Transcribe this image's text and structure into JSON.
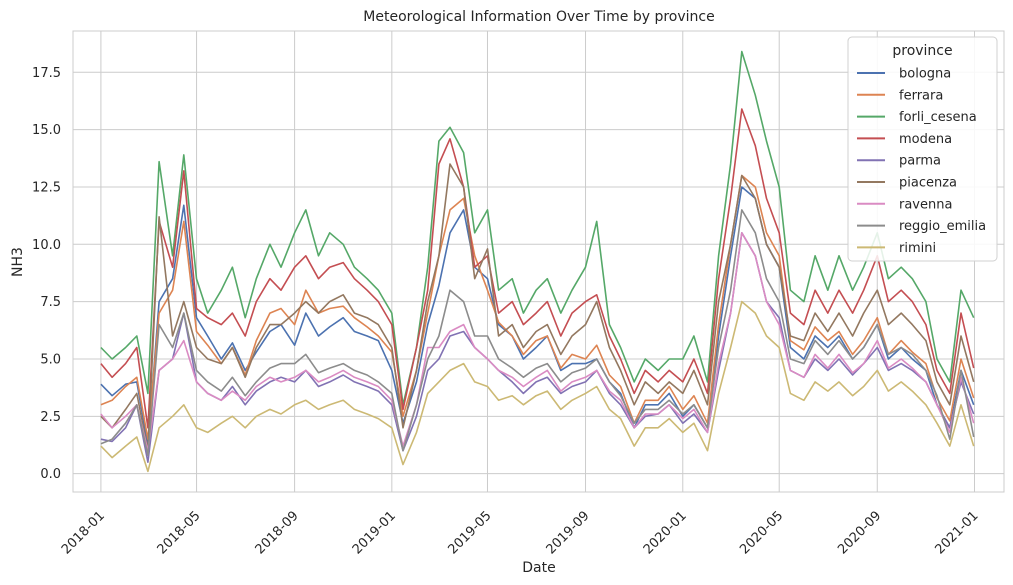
{
  "chart_data": {
    "type": "line",
    "title": "Meteorological Information Over Time by province",
    "xlabel": "Date",
    "ylabel": "NH3",
    "xlim": [
      "2017-11-27",
      "2021-02-07"
    ],
    "ylim": [
      -0.8,
      19.3
    ],
    "x_ticks": [
      "2018-01",
      "2018-05",
      "2018-09",
      "2019-01",
      "2019-05",
      "2019-09",
      "2020-01",
      "2020-05",
      "2020-09",
      "2021-01"
    ],
    "y_ticks": [
      0.0,
      2.5,
      5.0,
      7.5,
      10.0,
      12.5,
      15.0,
      17.5
    ],
    "y_tick_labels": [
      "0.0",
      "2.5",
      "5.0",
      "7.5",
      "10.0",
      "12.5",
      "15.0",
      "17.5"
    ],
    "grid": true,
    "legend": {
      "title": "province",
      "placement": "top-right"
    },
    "x": [
      "2018-01-01",
      "2018-01-15",
      "2018-02-01",
      "2018-02-15",
      "2018-03-01",
      "2018-03-15",
      "2018-04-01",
      "2018-04-15",
      "2018-05-01",
      "2018-05-15",
      "2018-06-01",
      "2018-06-15",
      "2018-07-01",
      "2018-07-15",
      "2018-08-01",
      "2018-08-15",
      "2018-09-01",
      "2018-09-15",
      "2018-10-01",
      "2018-10-15",
      "2018-11-01",
      "2018-11-15",
      "2018-12-01",
      "2018-12-15",
      "2019-01-01",
      "2019-01-15",
      "2019-02-01",
      "2019-02-15",
      "2019-03-01",
      "2019-03-15",
      "2019-04-01",
      "2019-04-15",
      "2019-05-01",
      "2019-05-15",
      "2019-06-01",
      "2019-06-15",
      "2019-07-01",
      "2019-07-15",
      "2019-08-01",
      "2019-08-15",
      "2019-09-01",
      "2019-09-15",
      "2019-10-01",
      "2019-10-15",
      "2019-11-01",
      "2019-11-15",
      "2019-12-01",
      "2019-12-15",
      "2020-01-01",
      "2020-01-15",
      "2020-02-01",
      "2020-02-15",
      "2020-03-01",
      "2020-03-15",
      "2020-04-01",
      "2020-04-15",
      "2020-05-01",
      "2020-05-15",
      "2020-06-01",
      "2020-06-15",
      "2020-07-01",
      "2020-07-15",
      "2020-08-01",
      "2020-08-15",
      "2020-09-01",
      "2020-09-15",
      "2020-10-01",
      "2020-10-15",
      "2020-11-01",
      "2020-11-15",
      "2020-12-01",
      "2020-12-15",
      "2020-12-31"
    ],
    "series": [
      {
        "name": "bologna",
        "color": "#4c72b0",
        "values": [
          3.9,
          3.4,
          3.9,
          4.0,
          1.2,
          7.5,
          8.5,
          11.7,
          6.8,
          6.0,
          5.0,
          5.7,
          4.5,
          5.3,
          6.2,
          6.5,
          5.6,
          7.0,
          6.0,
          6.4,
          6.8,
          6.2,
          6.0,
          5.8,
          4.5,
          2.2,
          4.0,
          6.5,
          8.2,
          10.5,
          11.5,
          9.0,
          8.5,
          6.5,
          6.0,
          5.0,
          5.5,
          6.0,
          4.5,
          4.8,
          4.8,
          5.0,
          4.0,
          3.5,
          2.0,
          3.0,
          3.0,
          3.5,
          2.5,
          3.0,
          2.0,
          6.0,
          9.5,
          12.5,
          12.0,
          10.0,
          9.0,
          5.5,
          5.0,
          6.0,
          5.5,
          6.0,
          5.0,
          5.5,
          6.5,
          5.0,
          5.5,
          5.0,
          4.5,
          3.0,
          2.0,
          4.5,
          3.0
        ]
      },
      {
        "name": "ferrara",
        "color": "#dd8452",
        "values": [
          3.0,
          3.2,
          3.8,
          4.2,
          1.5,
          7.0,
          8.0,
          11.0,
          6.2,
          5.6,
          4.8,
          5.5,
          4.3,
          5.8,
          7.0,
          7.2,
          6.5,
          8.0,
          7.0,
          7.2,
          7.3,
          6.8,
          6.4,
          6.0,
          5.3,
          2.5,
          4.5,
          7.0,
          9.5,
          11.5,
          12.0,
          9.5,
          8.0,
          6.6,
          6.0,
          5.2,
          5.8,
          6.0,
          4.6,
          5.2,
          5.0,
          5.6,
          4.3,
          3.8,
          2.2,
          3.2,
          3.2,
          3.8,
          2.8,
          3.4,
          2.2,
          6.5,
          10.0,
          13.0,
          12.5,
          10.5,
          9.5,
          5.8,
          5.4,
          6.4,
          5.8,
          6.2,
          5.2,
          5.8,
          6.8,
          5.2,
          5.8,
          5.3,
          4.8,
          3.3,
          2.3,
          5.0,
          3.3
        ]
      },
      {
        "name": "forli_cesena",
        "color": "#55a868",
        "values": [
          5.5,
          5.0,
          5.5,
          6.0,
          3.5,
          13.6,
          9.5,
          13.9,
          8.5,
          7.0,
          8.0,
          9.0,
          6.8,
          8.5,
          10.0,
          9.0,
          10.5,
          11.5,
          9.5,
          10.5,
          10.0,
          9.0,
          8.5,
          8.0,
          7.0,
          3.0,
          5.5,
          9.0,
          14.5,
          15.1,
          14.0,
          10.5,
          11.5,
          8.0,
          8.5,
          7.0,
          8.0,
          8.5,
          7.0,
          8.0,
          9.0,
          11.0,
          6.5,
          5.5,
          4.0,
          5.0,
          4.5,
          5.0,
          5.0,
          6.0,
          4.0,
          9.5,
          13.5,
          18.4,
          16.5,
          14.5,
          12.5,
          8.0,
          7.5,
          9.5,
          8.0,
          9.5,
          8.0,
          9.0,
          10.5,
          8.5,
          9.0,
          8.5,
          7.5,
          5.0,
          4.0,
          8.0,
          6.8
        ]
      },
      {
        "name": "modena",
        "color": "#c44e52",
        "values": [
          4.8,
          4.2,
          4.8,
          5.5,
          2.0,
          11.0,
          9.0,
          13.2,
          7.2,
          6.8,
          6.5,
          7.0,
          6.0,
          7.5,
          8.5,
          8.0,
          9.0,
          9.5,
          8.5,
          9.0,
          9.2,
          8.5,
          8.0,
          7.5,
          6.5,
          2.8,
          5.5,
          8.0,
          13.5,
          14.6,
          12.5,
          9.0,
          9.5,
          7.0,
          7.5,
          6.5,
          7.0,
          7.5,
          6.0,
          7.0,
          7.5,
          7.8,
          6.0,
          5.0,
          3.5,
          4.5,
          4.0,
          4.5,
          4.0,
          5.0,
          3.5,
          8.5,
          12.0,
          15.9,
          14.3,
          12.0,
          10.5,
          7.0,
          6.5,
          8.0,
          7.0,
          8.0,
          7.0,
          8.0,
          9.5,
          7.5,
          8.0,
          7.5,
          6.5,
          4.5,
          3.5,
          7.0,
          4.6
        ]
      },
      {
        "name": "parma",
        "color": "#8172b3",
        "values": [
          1.5,
          1.4,
          2.0,
          3.0,
          0.5,
          4.5,
          5.0,
          7.0,
          4.0,
          3.5,
          3.2,
          3.8,
          3.0,
          3.6,
          4.0,
          4.2,
          4.0,
          4.5,
          3.8,
          4.0,
          4.3,
          4.0,
          3.8,
          3.6,
          3.0,
          1.0,
          2.5,
          4.5,
          5.0,
          6.0,
          6.2,
          5.5,
          5.0,
          4.5,
          4.0,
          3.5,
          4.0,
          4.2,
          3.5,
          3.8,
          4.0,
          4.5,
          3.5,
          3.0,
          2.0,
          2.5,
          2.6,
          3.0,
          2.2,
          2.6,
          1.8,
          4.5,
          7.0,
          10.5,
          9.5,
          7.5,
          6.8,
          4.5,
          4.2,
          5.0,
          4.5,
          5.0,
          4.3,
          4.8,
          5.5,
          4.5,
          4.8,
          4.5,
          4.0,
          3.0,
          2.0,
          4.0,
          2.6
        ]
      },
      {
        "name": "piacenza",
        "color": "#937860",
        "values": [
          2.5,
          2.0,
          2.8,
          3.5,
          1.0,
          11.2,
          6.0,
          7.5,
          5.5,
          5.0,
          4.8,
          5.5,
          4.2,
          5.5,
          6.5,
          6.5,
          7.0,
          7.5,
          7.0,
          7.5,
          7.8,
          7.0,
          6.8,
          6.5,
          5.5,
          2.0,
          4.5,
          7.5,
          9.5,
          13.5,
          12.5,
          8.5,
          9.8,
          6.0,
          6.5,
          5.5,
          6.2,
          6.5,
          5.2,
          6.0,
          6.5,
          7.5,
          5.5,
          4.5,
          3.0,
          4.0,
          3.5,
          4.0,
          3.5,
          4.5,
          3.0,
          7.5,
          10.0,
          13.0,
          12.0,
          10.0,
          9.0,
          6.0,
          5.8,
          7.0,
          6.2,
          7.0,
          6.0,
          7.0,
          8.0,
          6.5,
          7.0,
          6.5,
          5.8,
          4.0,
          3.0,
          6.0,
          4.0
        ]
      },
      {
        "name": "ravenna",
        "color": "#da8bc3",
        "values": [
          2.6,
          2.0,
          2.5,
          3.0,
          1.0,
          4.5,
          5.0,
          5.8,
          4.0,
          3.5,
          3.2,
          3.6,
          3.2,
          3.8,
          4.2,
          4.0,
          4.2,
          4.5,
          4.0,
          4.2,
          4.5,
          4.2,
          4.0,
          3.8,
          3.2,
          1.2,
          3.0,
          5.5,
          5.5,
          6.2,
          6.5,
          5.5,
          5.0,
          4.5,
          4.2,
          3.8,
          4.2,
          4.5,
          3.6,
          4.0,
          4.2,
          4.5,
          3.6,
          3.2,
          2.0,
          2.6,
          2.6,
          3.0,
          2.4,
          2.8,
          1.8,
          4.8,
          7.0,
          10.5,
          9.5,
          7.5,
          6.5,
          4.5,
          4.2,
          5.2,
          4.6,
          5.2,
          4.4,
          4.8,
          5.8,
          4.6,
          5.0,
          4.6,
          4.0,
          3.0,
          1.8,
          4.2,
          2.2
        ]
      },
      {
        "name": "reggio_emilia",
        "color": "#8c8c8c",
        "values": [
          1.3,
          1.5,
          2.2,
          3.0,
          0.8,
          6.5,
          5.5,
          7.0,
          4.5,
          4.0,
          3.6,
          4.2,
          3.4,
          4.0,
          4.6,
          4.8,
          4.8,
          5.2,
          4.4,
          4.6,
          4.8,
          4.5,
          4.3,
          4.0,
          3.5,
          1.0,
          3.0,
          5.0,
          6.0,
          8.0,
          7.5,
          6.0,
          6.0,
          5.0,
          4.6,
          4.2,
          4.6,
          4.8,
          4.0,
          4.4,
          4.6,
          5.0,
          4.0,
          3.4,
          2.2,
          2.8,
          2.8,
          3.2,
          2.6,
          3.0,
          2.0,
          5.5,
          8.0,
          11.5,
          10.5,
          8.5,
          7.5,
          5.0,
          4.8,
          5.8,
          5.2,
          5.8,
          5.0,
          5.5,
          6.5,
          5.2,
          5.5,
          5.2,
          4.5,
          3.4,
          1.5,
          4.5,
          1.6
        ]
      },
      {
        "name": "rimini",
        "color": "#ccb974",
        "values": [
          1.2,
          0.7,
          1.2,
          1.6,
          0.1,
          2.0,
          2.5,
          3.0,
          2.0,
          1.8,
          2.2,
          2.5,
          2.0,
          2.5,
          2.8,
          2.6,
          3.0,
          3.2,
          2.8,
          3.0,
          3.2,
          2.8,
          2.6,
          2.4,
          2.0,
          0.4,
          1.8,
          3.5,
          4.0,
          4.5,
          4.8,
          4.0,
          3.8,
          3.2,
          3.4,
          3.0,
          3.4,
          3.6,
          2.8,
          3.2,
          3.5,
          3.8,
          2.8,
          2.4,
          1.2,
          2.0,
          2.0,
          2.4,
          1.8,
          2.2,
          1.0,
          3.5,
          5.5,
          7.5,
          7.0,
          6.0,
          5.5,
          3.5,
          3.2,
          4.0,
          3.6,
          4.0,
          3.4,
          3.8,
          4.5,
          3.6,
          4.0,
          3.6,
          3.0,
          2.2,
          1.2,
          3.0,
          1.2
        ]
      }
    ]
  }
}
